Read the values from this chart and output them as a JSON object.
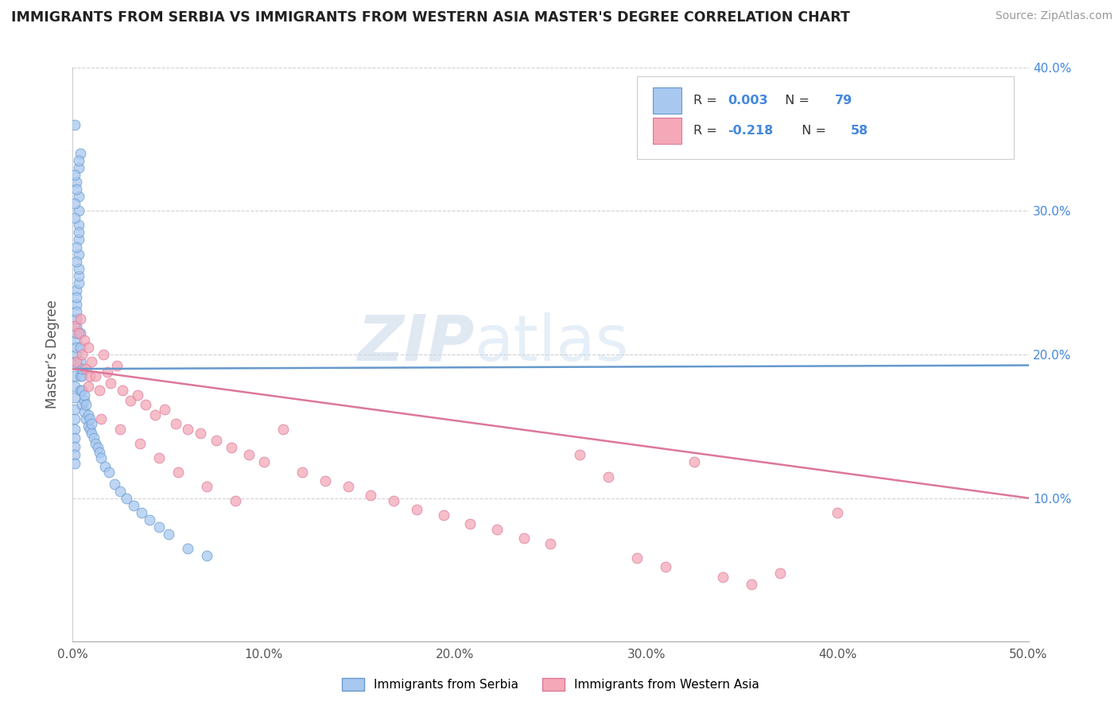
{
  "title": "IMMIGRANTS FROM SERBIA VS IMMIGRANTS FROM WESTERN ASIA MASTER'S DEGREE CORRELATION CHART",
  "source": "Source: ZipAtlas.com",
  "ylabel": "Master’s Degree",
  "xlim": [
    0.0,
    0.5
  ],
  "ylim": [
    0.0,
    0.4
  ],
  "xtick_vals": [
    0.0,
    0.1,
    0.2,
    0.3,
    0.4,
    0.5
  ],
  "ytick_vals": [
    0.0,
    0.1,
    0.2,
    0.3,
    0.4
  ],
  "legend1_label": "Immigrants from Serbia",
  "legend2_label": "Immigrants from Western Asia",
  "R1": "0.003",
  "N1": "79",
  "R2": "-0.218",
  "N2": "58",
  "color_serbia": "#a8c8f0",
  "color_western_asia": "#f4a8b8",
  "border_serbia": "#6699cc",
  "border_western": "#dd7799",
  "trend_serbia": "#6699cc",
  "trend_western": "#dd7799",
  "blue_text": "#4488dd",
  "watermark_color": "#c8ddf0",
  "serbia_x": [
    0.001,
    0.001,
    0.001,
    0.001,
    0.001,
    0.001,
    0.001,
    0.001,
    0.001,
    0.001,
    0.001,
    0.002,
    0.002,
    0.002,
    0.002,
    0.002,
    0.002,
    0.002,
    0.002,
    0.002,
    0.002,
    0.002,
    0.003,
    0.003,
    0.003,
    0.003,
    0.003,
    0.003,
    0.003,
    0.003,
    0.004,
    0.004,
    0.004,
    0.004,
    0.004,
    0.005,
    0.005,
    0.005,
    0.005,
    0.006,
    0.006,
    0.006,
    0.007,
    0.007,
    0.008,
    0.008,
    0.009,
    0.009,
    0.01,
    0.01,
    0.011,
    0.012,
    0.013,
    0.014,
    0.015,
    0.017,
    0.019,
    0.022,
    0.025,
    0.028,
    0.032,
    0.036,
    0.04,
    0.045,
    0.05,
    0.06,
    0.07,
    0.002,
    0.003,
    0.004,
    0.001,
    0.002,
    0.003,
    0.001,
    0.002,
    0.001,
    0.002,
    0.001,
    0.003
  ],
  "serbia_y": [
    0.195,
    0.185,
    0.178,
    0.17,
    0.162,
    0.155,
    0.148,
    0.142,
    0.136,
    0.13,
    0.124,
    0.22,
    0.21,
    0.2,
    0.193,
    0.205,
    0.215,
    0.225,
    0.235,
    0.245,
    0.23,
    0.24,
    0.25,
    0.255,
    0.26,
    0.27,
    0.28,
    0.29,
    0.3,
    0.31,
    0.175,
    0.185,
    0.195,
    0.205,
    0.215,
    0.165,
    0.175,
    0.185,
    0.19,
    0.16,
    0.168,
    0.172,
    0.155,
    0.165,
    0.15,
    0.158,
    0.148,
    0.155,
    0.145,
    0.152,
    0.142,
    0.138,
    0.135,
    0.132,
    0.128,
    0.122,
    0.118,
    0.11,
    0.105,
    0.1,
    0.095,
    0.09,
    0.085,
    0.08,
    0.075,
    0.065,
    0.06,
    0.32,
    0.33,
    0.34,
    0.36,
    0.265,
    0.285,
    0.295,
    0.275,
    0.305,
    0.315,
    0.325,
    0.335
  ],
  "western_x": [
    0.001,
    0.002,
    0.003,
    0.004,
    0.005,
    0.006,
    0.007,
    0.008,
    0.009,
    0.01,
    0.012,
    0.014,
    0.016,
    0.018,
    0.02,
    0.023,
    0.026,
    0.03,
    0.034,
    0.038,
    0.043,
    0.048,
    0.054,
    0.06,
    0.067,
    0.075,
    0.083,
    0.092,
    0.1,
    0.11,
    0.12,
    0.132,
    0.144,
    0.156,
    0.168,
    0.18,
    0.194,
    0.208,
    0.222,
    0.236,
    0.25,
    0.265,
    0.28,
    0.295,
    0.31,
    0.325,
    0.34,
    0.355,
    0.37,
    0.008,
    0.015,
    0.025,
    0.035,
    0.045,
    0.055,
    0.07,
    0.085,
    0.4
  ],
  "western_y": [
    0.22,
    0.195,
    0.215,
    0.225,
    0.2,
    0.21,
    0.19,
    0.205,
    0.185,
    0.195,
    0.185,
    0.175,
    0.2,
    0.188,
    0.18,
    0.192,
    0.175,
    0.168,
    0.172,
    0.165,
    0.158,
    0.162,
    0.152,
    0.148,
    0.145,
    0.14,
    0.135,
    0.13,
    0.125,
    0.148,
    0.118,
    0.112,
    0.108,
    0.102,
    0.098,
    0.092,
    0.088,
    0.082,
    0.078,
    0.072,
    0.068,
    0.13,
    0.115,
    0.058,
    0.052,
    0.125,
    0.045,
    0.04,
    0.048,
    0.178,
    0.155,
    0.148,
    0.138,
    0.128,
    0.118,
    0.108,
    0.098,
    0.09
  ]
}
